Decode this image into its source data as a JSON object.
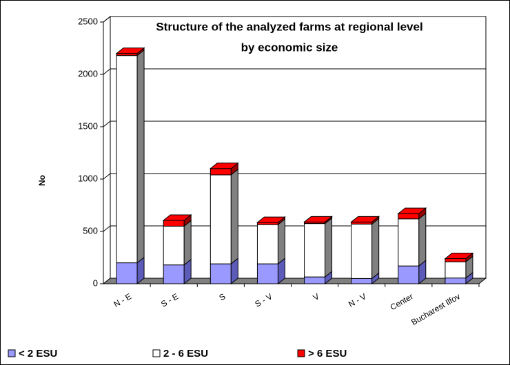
{
  "chart_data": {
    "type": "bar3d_stacked",
    "title": [
      "Structure of the analyzed farms at regional level",
      "by economic size"
    ],
    "y_label": "No",
    "categories": [
      "N - E",
      "S - E",
      "S",
      "S - V",
      "V",
      "N - V",
      "Center",
      "Bucharest Ilfov"
    ],
    "series": [
      {
        "name": "< 2 ESU",
        "color": "#9999ff",
        "side": "#5c5cb8",
        "values": [
          200,
          180,
          190,
          190,
          65,
          50,
          170,
          55
        ]
      },
      {
        "name": "2 - 6 ESU",
        "color": "#ffffff",
        "side": "#808080",
        "values": [
          1980,
          370,
          850,
          375,
          510,
          520,
          450,
          155
        ]
      },
      {
        "name": "> 6 ESU",
        "color": "#ff0000",
        "side": "#990000",
        "values": [
          20,
          55,
          60,
          20,
          15,
          20,
          50,
          30
        ]
      }
    ],
    "ylim": [
      0,
      2500
    ],
    "yticks": [
      0,
      500,
      1000,
      1500,
      2000,
      2500
    ],
    "grid": true
  }
}
